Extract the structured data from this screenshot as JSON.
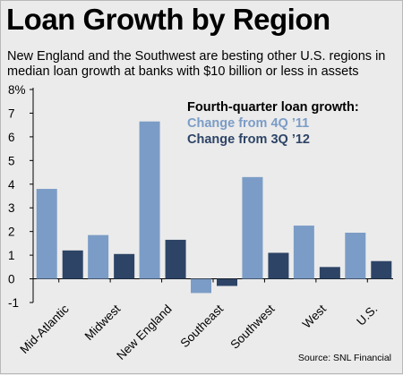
{
  "title": "Loan Growth by Region",
  "subtitle": "New England and the Southwest are besting other U.S. regions in median loan growth at banks with $10 billion or less in assets",
  "source": "Source: SNL Financial",
  "chart_data": {
    "type": "bar",
    "categories": [
      "Mid-Atlantic",
      "Midwest",
      "New England",
      "Southeast",
      "Southwest",
      "West",
      "U.S."
    ],
    "series": [
      {
        "name": "Change from 4Q ’11",
        "color": "#7b9cc6",
        "values": [
          3.8,
          1.85,
          6.65,
          -0.6,
          4.3,
          2.25,
          1.95
        ]
      },
      {
        "name": "Change from 3Q ’12",
        "color": "#2d4466",
        "values": [
          1.2,
          1.05,
          1.65,
          -0.3,
          1.1,
          0.5,
          0.75
        ]
      }
    ],
    "legend_title": "Fourth-quarter loan growth:",
    "legend_position": "top-right",
    "ylim": [
      -1,
      8
    ],
    "yticks": [
      "-1",
      "0",
      "1",
      "2",
      "3",
      "4",
      "5",
      "6",
      "7",
      "8%"
    ],
    "grid": false
  }
}
